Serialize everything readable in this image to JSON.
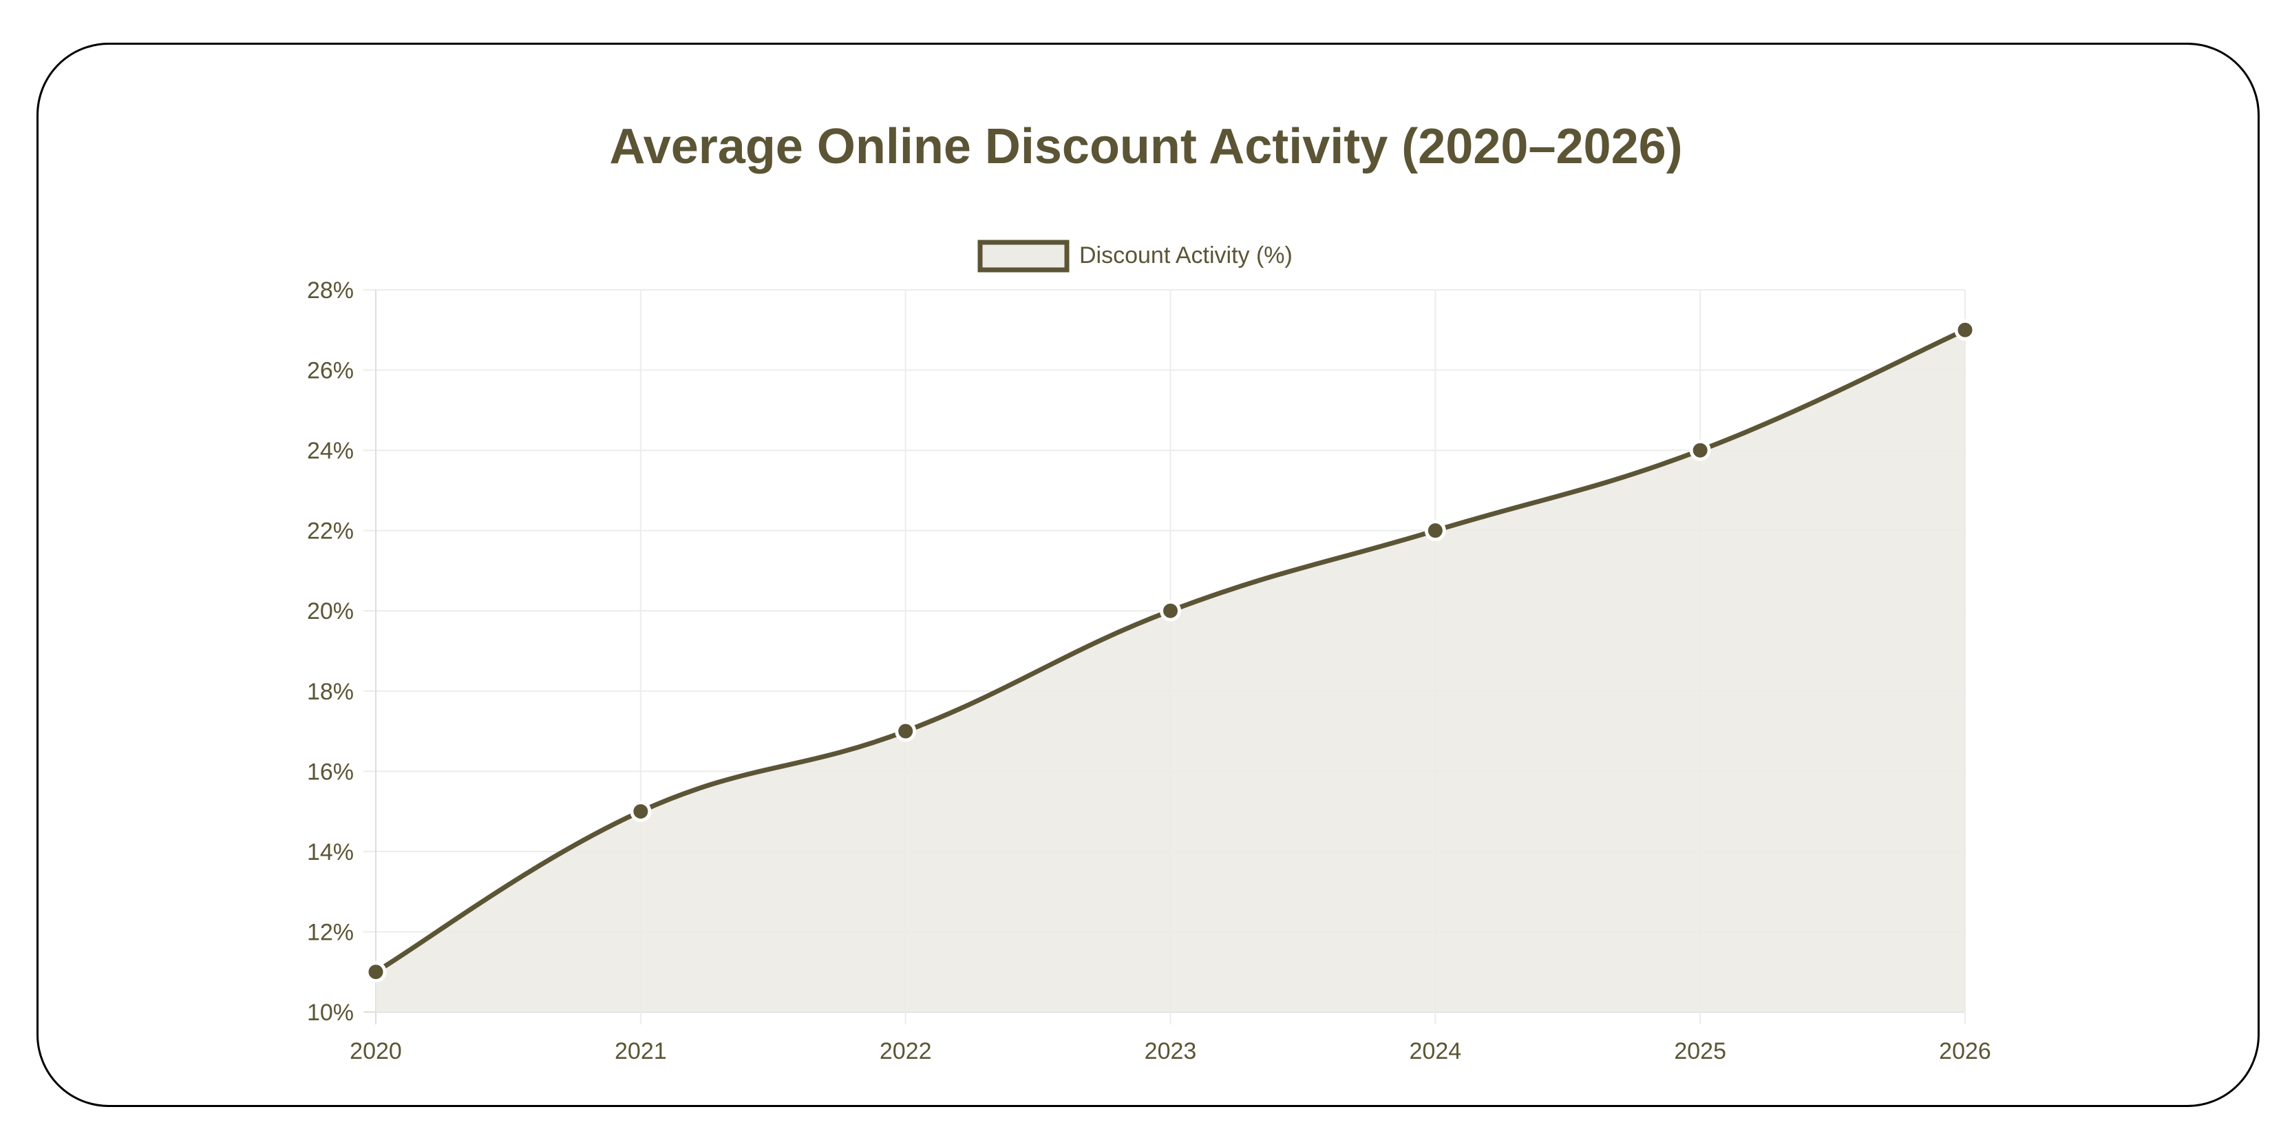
{
  "chart_data": {
    "type": "line",
    "title": "Average Online Discount Activity (2020–2026)",
    "categories": [
      "2020",
      "2021",
      "2022",
      "2023",
      "2024",
      "2025",
      "2026"
    ],
    "series": [
      {
        "name": "Discount Activity (%)",
        "values": [
          11,
          15,
          17,
          20,
          22,
          24,
          27
        ]
      }
    ],
    "ylim": [
      10,
      28
    ],
    "yticks": [
      "10%",
      "12%",
      "14%",
      "16%",
      "18%",
      "20%",
      "22%",
      "24%",
      "26%",
      "28%"
    ],
    "ytick_values": [
      10,
      12,
      14,
      16,
      18,
      20,
      22,
      24,
      26,
      28
    ],
    "fill": true,
    "smooth": true,
    "grid": true,
    "legend": "top",
    "colors": {
      "line": "#5b5535",
      "fill": "#edebe6",
      "text": "#5b5535",
      "grid": "#ececec"
    }
  }
}
